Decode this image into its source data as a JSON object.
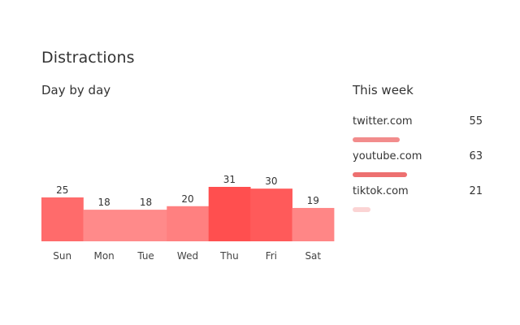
{
  "page": {
    "title": "Distractions"
  },
  "day_section": {
    "title": "Day by day"
  },
  "week_section": {
    "title": "This week",
    "sites": [
      {
        "name": "twitter.com",
        "count": "55",
        "value": 55,
        "color": "#ef6f6f",
        "opacity": 0.8
      },
      {
        "name": "youtube.com",
        "count": "63",
        "value": 63,
        "color": "#ec6464",
        "opacity": 0.92
      },
      {
        "name": "tiktok.com",
        "count": "21",
        "value": 21,
        "color": "#f6a0a0",
        "opacity": 0.45
      }
    ]
  },
  "chart_data": {
    "type": "bar",
    "categories": [
      "Sun",
      "Mon",
      "Tue",
      "Wed",
      "Thu",
      "Fri",
      "Sat"
    ],
    "values": [
      25,
      18,
      18,
      20,
      31,
      30,
      19
    ],
    "value_labels": [
      "25",
      "18",
      "18",
      "20",
      "31",
      "30",
      "19"
    ],
    "colors": [
      "#ff6b6b",
      "#ff8a8a",
      "#ff8a8a",
      "#ff8080",
      "#ff4f4f",
      "#ff5a5a",
      "#ff8686"
    ],
    "ylim": [
      0,
      31
    ],
    "grid": false,
    "legend": "none",
    "title": "",
    "xlabel": "",
    "ylabel": ""
  }
}
